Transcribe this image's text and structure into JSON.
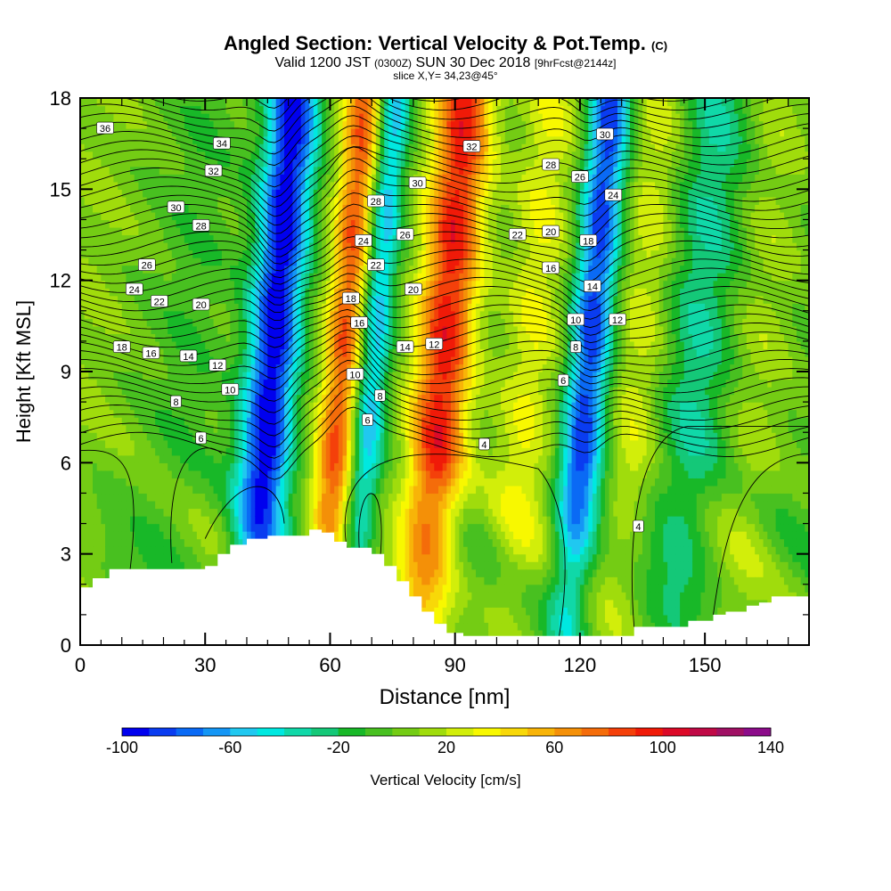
{
  "title": {
    "main": "Angled Section: Vertical Velocity & Pot.Temp.",
    "main_suffix": "(C)",
    "valid_prefix": "Valid 1200 JST",
    "valid_zulu": "(0300Z)",
    "valid_date": "SUN 30 Dec 2018",
    "valid_fcst": "[9hrFcst@2144z]",
    "slice": "slice X,Y= 34,23@45°"
  },
  "colorbar": {
    "label": "Vertical Velocity [cm/s]",
    "tick_labels": [
      "-100",
      "-60",
      "-20",
      "20",
      "60",
      "100",
      "140"
    ],
    "tick_values": [
      -100,
      -60,
      -20,
      20,
      60,
      100,
      140
    ],
    "bins": [
      -100,
      -90,
      -80,
      -70,
      -60,
      -50,
      -40,
      -30,
      -20,
      -10,
      0,
      10,
      20,
      30,
      40,
      50,
      60,
      70,
      80,
      90,
      100,
      110,
      120,
      130,
      140
    ],
    "colors": [
      "#0000ee",
      "#0a3cf0",
      "#0a6af5",
      "#1496f5",
      "#20c8f0",
      "#00e8e0",
      "#10d8a8",
      "#14c878",
      "#18b828",
      "#48c020",
      "#74cc14",
      "#a0dc0c",
      "#d2ee0a",
      "#f8f800",
      "#f8d808",
      "#f8b408",
      "#f49008",
      "#f46c0a",
      "#f4400a",
      "#f01a08",
      "#dc0a28",
      "#c00a46",
      "#a01064",
      "#8c0c8a"
    ]
  },
  "chart_data": {
    "type": "heatmap",
    "title": "Angled Section: Vertical Velocity & Pot.Temp.",
    "xlabel": "Distance [nm]",
    "ylabel": "Height [Kft MSL]",
    "xlim": [
      0,
      175
    ],
    "ylim": [
      0,
      18
    ],
    "x_ticks": [
      0,
      30,
      60,
      90,
      120,
      150
    ],
    "x_tick_labels": [
      "0",
      "30",
      "60",
      "90",
      "120",
      "150"
    ],
    "y_ticks": [
      0,
      3,
      6,
      9,
      12,
      15,
      18
    ],
    "y_tick_labels": [
      "0",
      "3",
      "6",
      "9",
      "12",
      "15",
      "18"
    ],
    "fill_variable": "Vertical Velocity [cm/s]",
    "contour_variable": "Pot.Temp. (C)",
    "velocity_features": [
      {
        "x": 0,
        "w": 12,
        "amp": 10
      },
      {
        "x": 25,
        "w": 8,
        "amp": -8
      },
      {
        "x": 46,
        "w": 6,
        "amp": -100
      },
      {
        "x": 63,
        "w": 5,
        "amp": 80
      },
      {
        "x": 70,
        "w": 4,
        "amp": -60
      },
      {
        "x": 87,
        "w": 7,
        "amp": 95
      },
      {
        "x": 108,
        "w": 7,
        "amp": 30
      },
      {
        "x": 122,
        "w": 5,
        "amp": -85
      },
      {
        "x": 134,
        "w": 6,
        "amp": 25
      },
      {
        "x": 148,
        "w": 8,
        "amp": -30
      },
      {
        "x": 163,
        "w": 7,
        "amp": 15
      }
    ],
    "contour_labels": [
      {
        "x": 6,
        "y": 17.0,
        "text": "36"
      },
      {
        "x": 34,
        "y": 16.5,
        "text": "34"
      },
      {
        "x": 94,
        "y": 16.4,
        "text": "32"
      },
      {
        "x": 126,
        "y": 16.8,
        "text": "30"
      },
      {
        "x": 32,
        "y": 15.6,
        "text": "32"
      },
      {
        "x": 113,
        "y": 15.8,
        "text": "28"
      },
      {
        "x": 120,
        "y": 15.4,
        "text": "26"
      },
      {
        "x": 81,
        "y": 15.2,
        "text": "30"
      },
      {
        "x": 128,
        "y": 14.8,
        "text": "24"
      },
      {
        "x": 23,
        "y": 14.4,
        "text": "30"
      },
      {
        "x": 71,
        "y": 14.6,
        "text": "28"
      },
      {
        "x": 29,
        "y": 13.8,
        "text": "28"
      },
      {
        "x": 78,
        "y": 13.5,
        "text": "26"
      },
      {
        "x": 105,
        "y": 13.5,
        "text": "22"
      },
      {
        "x": 113,
        "y": 13.6,
        "text": "20"
      },
      {
        "x": 122,
        "y": 13.3,
        "text": "18"
      },
      {
        "x": 68,
        "y": 13.3,
        "text": "24"
      },
      {
        "x": 16,
        "y": 12.5,
        "text": "26"
      },
      {
        "x": 71,
        "y": 12.5,
        "text": "22"
      },
      {
        "x": 113,
        "y": 12.4,
        "text": "16"
      },
      {
        "x": 13,
        "y": 11.7,
        "text": "24"
      },
      {
        "x": 80,
        "y": 11.7,
        "text": "20"
      },
      {
        "x": 123,
        "y": 11.8,
        "text": "14"
      },
      {
        "x": 19,
        "y": 11.3,
        "text": "22"
      },
      {
        "x": 29,
        "y": 11.2,
        "text": "20"
      },
      {
        "x": 65,
        "y": 11.4,
        "text": "18"
      },
      {
        "x": 119,
        "y": 10.7,
        "text": "10"
      },
      {
        "x": 129,
        "y": 10.7,
        "text": "12"
      },
      {
        "x": 67,
        "y": 10.6,
        "text": "16"
      },
      {
        "x": 10,
        "y": 9.8,
        "text": "18"
      },
      {
        "x": 17,
        "y": 9.6,
        "text": "16"
      },
      {
        "x": 26,
        "y": 9.5,
        "text": "14"
      },
      {
        "x": 78,
        "y": 9.8,
        "text": "14"
      },
      {
        "x": 85,
        "y": 9.9,
        "text": "12"
      },
      {
        "x": 119,
        "y": 9.8,
        "text": "8"
      },
      {
        "x": 33,
        "y": 9.2,
        "text": "12"
      },
      {
        "x": 66,
        "y": 8.9,
        "text": "10"
      },
      {
        "x": 116,
        "y": 8.7,
        "text": "6"
      },
      {
        "x": 36,
        "y": 8.4,
        "text": "10"
      },
      {
        "x": 72,
        "y": 8.2,
        "text": "8"
      },
      {
        "x": 23,
        "y": 8.0,
        "text": "8"
      },
      {
        "x": 69,
        "y": 7.4,
        "text": "6"
      },
      {
        "x": 29,
        "y": 6.8,
        "text": "6"
      },
      {
        "x": 97,
        "y": 6.6,
        "text": "4"
      },
      {
        "x": 134,
        "y": 3.9,
        "text": "4"
      }
    ],
    "terrain": [
      [
        0,
        1.9
      ],
      [
        3,
        2.2
      ],
      [
        7,
        2.5
      ],
      [
        15,
        2.5
      ],
      [
        25,
        2.5
      ],
      [
        30,
        2.6
      ],
      [
        33,
        3.0
      ],
      [
        36,
        3.3
      ],
      [
        40,
        3.5
      ],
      [
        45,
        3.6
      ],
      [
        52,
        3.6
      ],
      [
        55,
        3.8
      ],
      [
        58,
        3.7
      ],
      [
        61,
        3.4
      ],
      [
        64,
        3.2
      ],
      [
        67,
        3.2
      ],
      [
        70,
        3.0
      ],
      [
        73,
        2.6
      ],
      [
        76,
        2.1
      ],
      [
        79,
        1.6
      ],
      [
        82,
        1.1
      ],
      [
        85,
        0.7
      ],
      [
        88,
        0.4
      ],
      [
        92,
        0.3
      ],
      [
        100,
        0.3
      ],
      [
        110,
        0.3
      ],
      [
        120,
        0.3
      ],
      [
        128,
        0.3
      ],
      [
        133,
        0.6
      ],
      [
        143,
        0.6
      ],
      [
        146,
        0.8
      ],
      [
        152,
        1.0
      ],
      [
        155,
        1.1
      ],
      [
        160,
        1.3
      ],
      [
        163,
        1.4
      ],
      [
        166,
        1.6
      ],
      [
        170,
        1.6
      ],
      [
        175,
        1.6
      ]
    ]
  }
}
